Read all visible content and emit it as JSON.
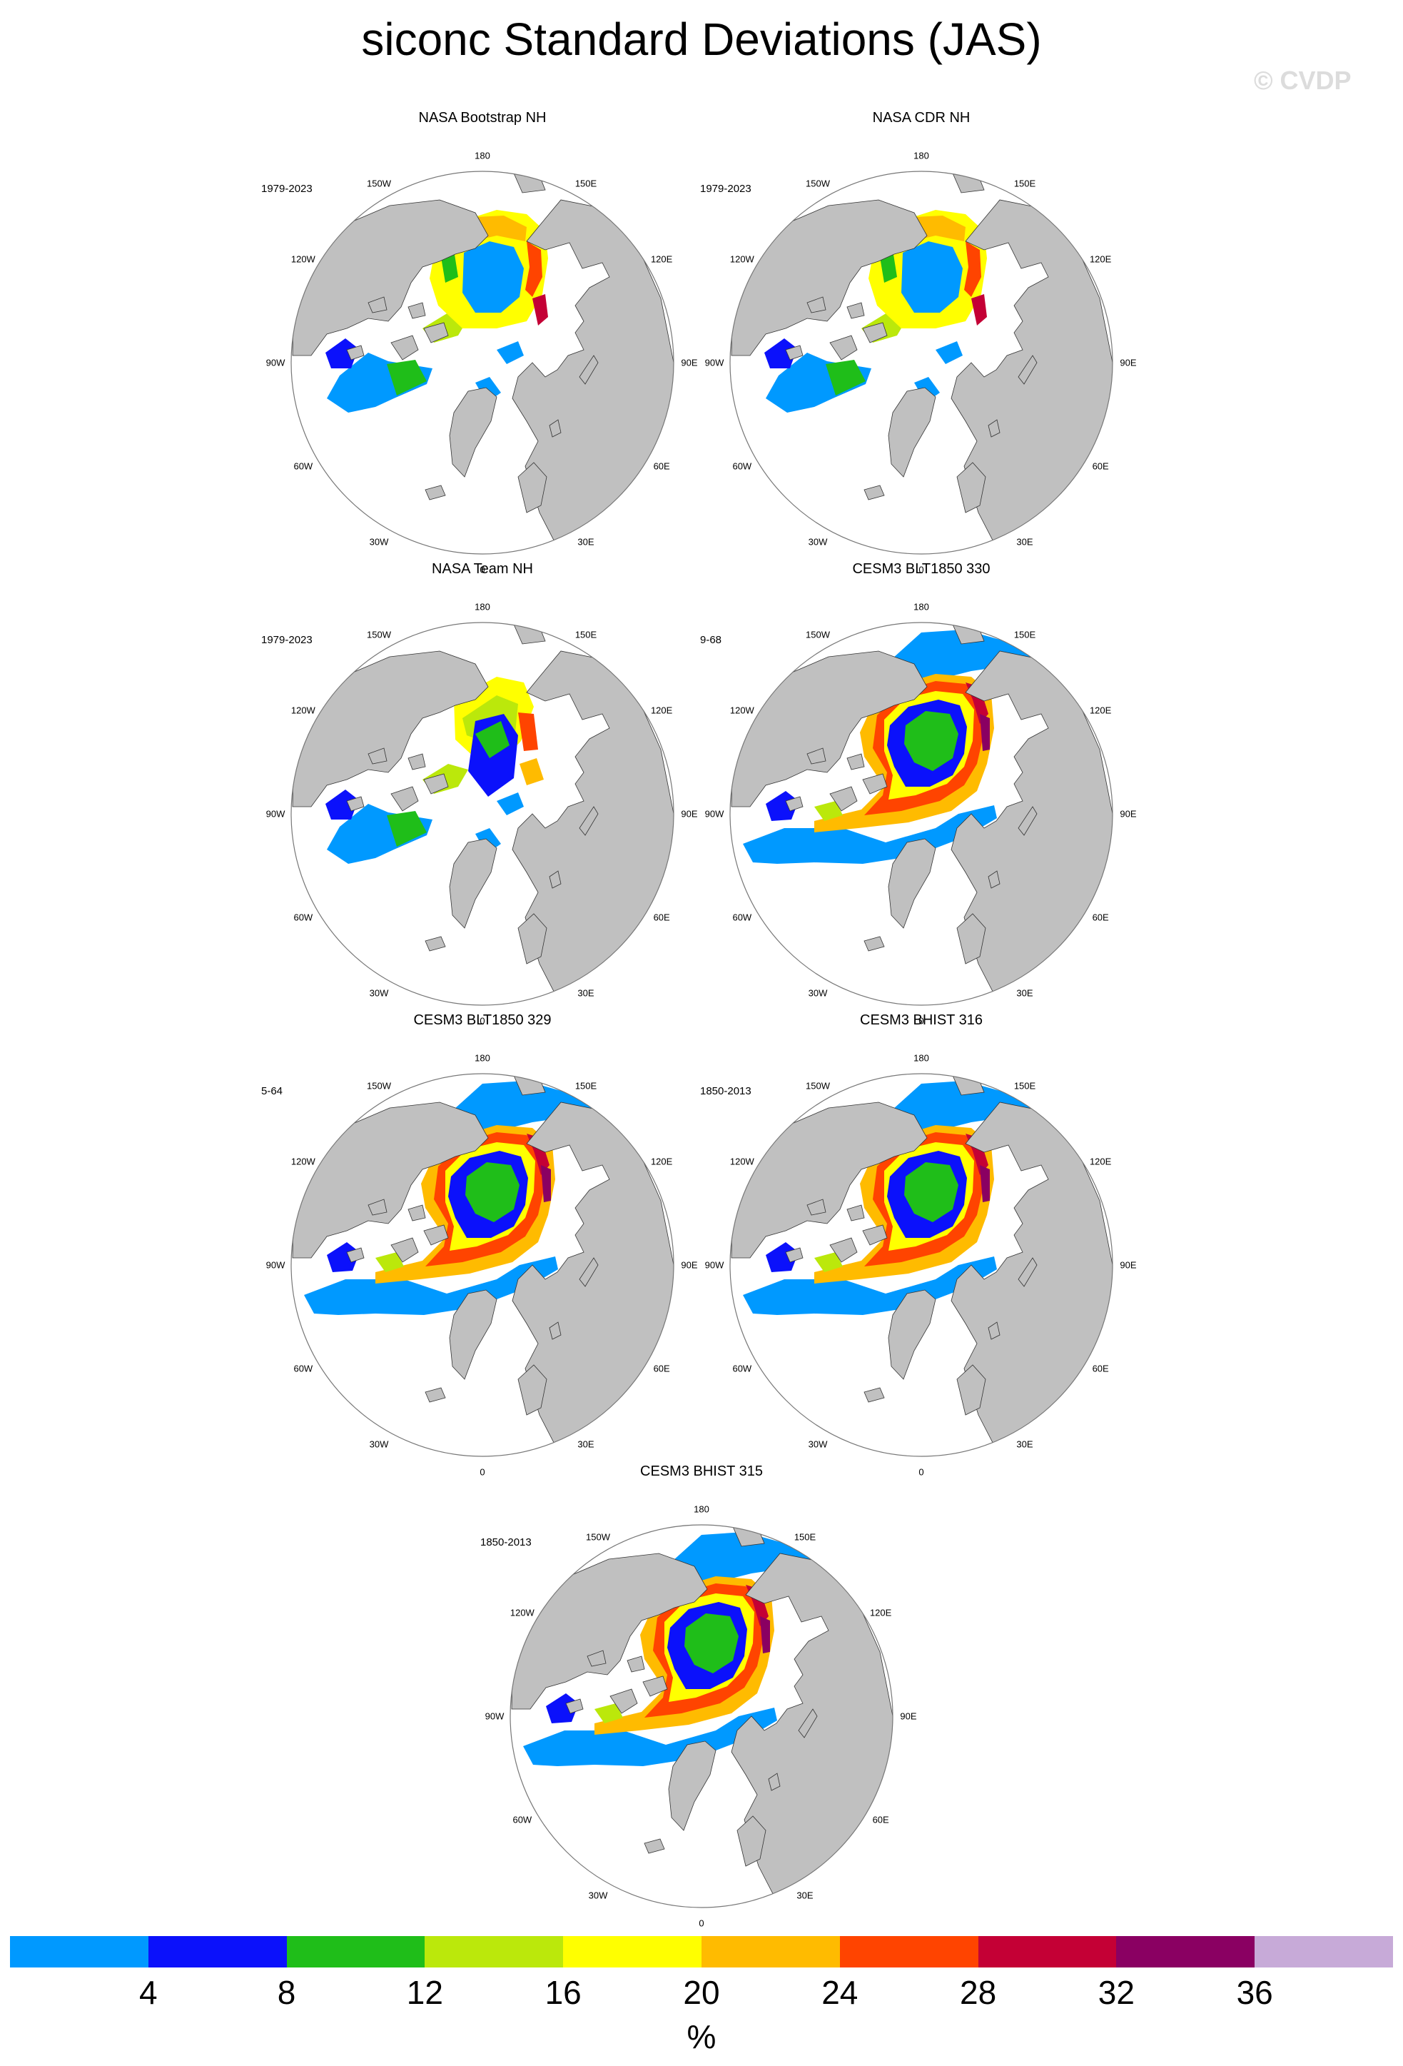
{
  "title": "siconc Standard Deviations (JAS)",
  "watermark": "© CVDP",
  "colorbar": {
    "colors": [
      "#0099ff",
      "#0b11fb",
      "#1fbe19",
      "#bbe80b",
      "#ffff00",
      "#ffbb00",
      "#ff4400",
      "#c40035",
      "#8a0062",
      "#c7aad8"
    ],
    "ticks": [
      "4",
      "8",
      "12",
      "16",
      "20",
      "24",
      "28",
      "32",
      "36"
    ],
    "unit": "%"
  },
  "lon_labels": [
    "180",
    "150E",
    "120E",
    "90E",
    "60E",
    "30E",
    "0",
    "30W",
    "60W",
    "90W",
    "120W",
    "150W"
  ],
  "panels": [
    {
      "title": "NASA Bootstrap NH",
      "period": "1979-2023",
      "pattern": "obs_bootstrap"
    },
    {
      "title": "NASA CDR NH",
      "period": "1979-2023",
      "pattern": "obs_cdr"
    },
    {
      "title": "NASA Team NH",
      "period": "1979-2023",
      "pattern": "obs_team"
    },
    {
      "title": "CESM3 BLT1850 330",
      "period": "9-68",
      "pattern": "model"
    },
    {
      "title": "CESM3 BLT1850 329",
      "period": "5-64",
      "pattern": "model"
    },
    {
      "title": "CESM3 BHIST 316",
      "period": "1850-2013",
      "pattern": "model"
    },
    {
      "title": "CESM3 BHIST 315",
      "period": "1850-2013",
      "pattern": "model"
    }
  ]
}
